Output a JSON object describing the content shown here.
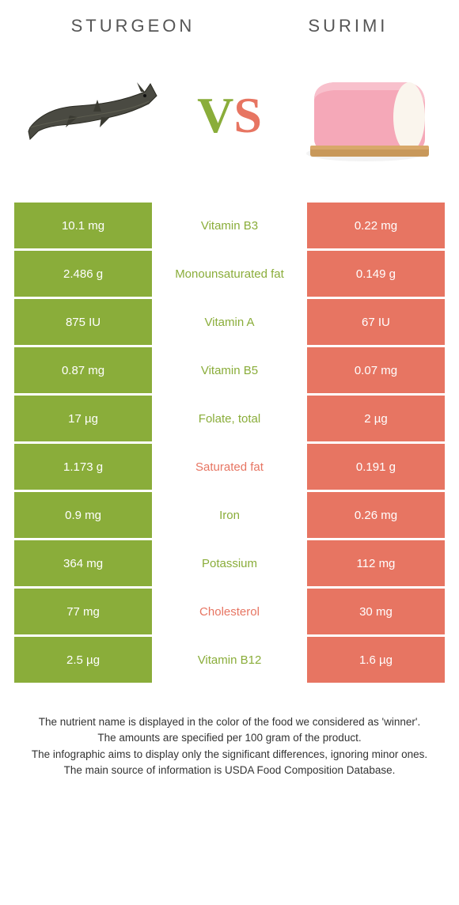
{
  "header": {
    "left_title": "Sturgeon",
    "right_title": "Surimi",
    "vs_v": "V",
    "vs_s": "S"
  },
  "colors": {
    "left": "#8aad3a",
    "right": "#e77562",
    "text": "#333333"
  },
  "rows": [
    {
      "left": "10.1 mg",
      "label": "Vitamin B3",
      "right": "0.22 mg",
      "winner": "left"
    },
    {
      "left": "2.486 g",
      "label": "Monounsaturated fat",
      "right": "0.149 g",
      "winner": "left"
    },
    {
      "left": "875 IU",
      "label": "Vitamin A",
      "right": "67 IU",
      "winner": "left"
    },
    {
      "left": "0.87 mg",
      "label": "Vitamin B5",
      "right": "0.07 mg",
      "winner": "left"
    },
    {
      "left": "17 µg",
      "label": "Folate, total",
      "right": "2 µg",
      "winner": "left"
    },
    {
      "left": "1.173 g",
      "label": "Saturated fat",
      "right": "0.191 g",
      "winner": "right"
    },
    {
      "left": "0.9 mg",
      "label": "Iron",
      "right": "0.26 mg",
      "winner": "left"
    },
    {
      "left": "364 mg",
      "label": "Potassium",
      "right": "112 mg",
      "winner": "left"
    },
    {
      "left": "77 mg",
      "label": "Cholesterol",
      "right": "30 mg",
      "winner": "right"
    },
    {
      "left": "2.5 µg",
      "label": "Vitamin B12",
      "right": "1.6 µg",
      "winner": "left"
    }
  ],
  "footer": {
    "line1": "The nutrient name is displayed in the color of the food we considered as 'winner'.",
    "line2": "The amounts are specified per 100 gram of the product.",
    "line3": "The infographic aims to display only the significant differences, ignoring minor ones.",
    "line4": "The main source of information is USDA Food Composition Database."
  }
}
